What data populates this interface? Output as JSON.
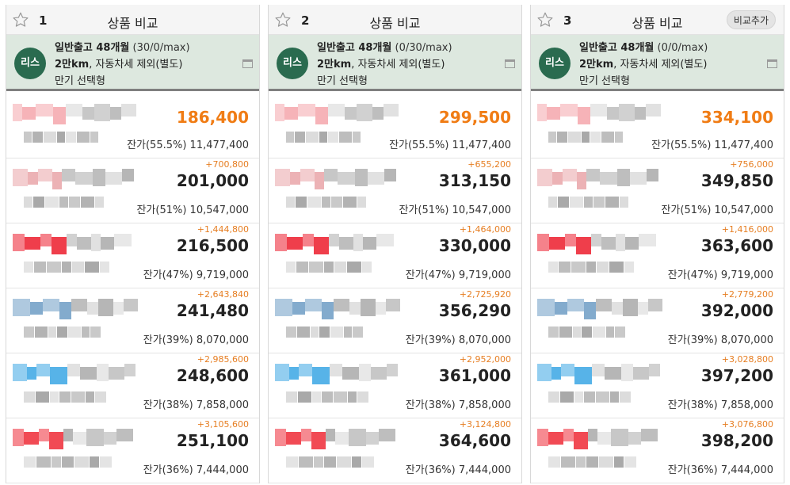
{
  "header_title": "상품 비교",
  "add_compare_label": "비교추가",
  "lease_badge": "리스",
  "condition": {
    "line1_bold": "일반출고 48개월",
    "line2_bold": "2만km",
    "line2_rest": ", 자동차세 제외(별도)",
    "line3": "만기 선택형"
  },
  "columns": [
    {
      "num": "1",
      "mileage": "(30/0/max)",
      "rows": [
        {
          "delta": "",
          "price": "186,400",
          "residual": "잔가(55.5%) 11,477,400"
        },
        {
          "delta": "+700,800",
          "price": "201,000",
          "residual": "잔가(51%) 10,547,000"
        },
        {
          "delta": "+1,444,800",
          "price": "216,500",
          "residual": "잔가(47%) 9,719,000"
        },
        {
          "delta": "+2,643,840",
          "price": "241,480",
          "residual": "잔가(39%) 8,070,000"
        },
        {
          "delta": "+2,985,600",
          "price": "248,600",
          "residual": "잔가(38%) 7,858,000"
        },
        {
          "delta": "+3,105,600",
          "price": "251,100",
          "residual": "잔가(36%) 7,444,000"
        }
      ]
    },
    {
      "num": "2",
      "mileage": "(0/30/max)",
      "rows": [
        {
          "delta": "",
          "price": "299,500",
          "residual": "잔가(55.5%) 11,477,400"
        },
        {
          "delta": "+655,200",
          "price": "313,150",
          "residual": "잔가(51%) 10,547,000"
        },
        {
          "delta": "+1,464,000",
          "price": "330,000",
          "residual": "잔가(47%) 9,719,000"
        },
        {
          "delta": "+2,725,920",
          "price": "356,290",
          "residual": "잔가(39%) 8,070,000"
        },
        {
          "delta": "+2,952,000",
          "price": "361,000",
          "residual": "잔가(38%) 7,858,000"
        },
        {
          "delta": "+3,124,800",
          "price": "364,600",
          "residual": "잔가(36%) 7,444,000"
        }
      ]
    },
    {
      "num": "3",
      "mileage": "(0/0/max)",
      "rows": [
        {
          "delta": "",
          "price": "334,100",
          "residual": "잔가(55.5%) 11,477,400"
        },
        {
          "delta": "+756,000",
          "price": "349,850",
          "residual": "잔가(51%) 10,547,000"
        },
        {
          "delta": "+1,416,000",
          "price": "363,600",
          "residual": "잔가(47%) 9,719,000"
        },
        {
          "delta": "+2,779,200",
          "price": "392,000",
          "residual": "잔가(39%) 8,070,000"
        },
        {
          "delta": "+3,028,800",
          "price": "397,200",
          "residual": "잔가(38%) 7,858,000"
        },
        {
          "delta": "+3,076,800",
          "price": "398,200",
          "residual": "잔가(36%) 7,444,000"
        }
      ]
    }
  ],
  "colors": {
    "accent_orange": "#f07c14",
    "condition_bg": "#dde8df",
    "lease_badge": "#2a6b4f",
    "redacted_logo_colors": [
      "#f4a6ac",
      "#e9a4a8",
      "#ec1c2c",
      "#6d9cc4",
      "#3aa6e4",
      "#ee2a36"
    ]
  }
}
